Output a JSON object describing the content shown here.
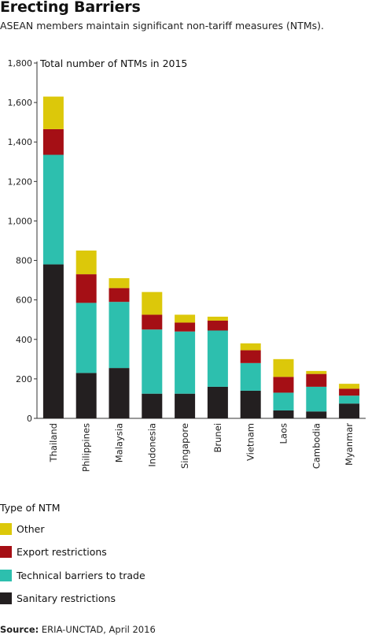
{
  "header": {
    "title": "Erecting Barriers",
    "subtitle": "ASEAN members maintain significant non-tariff measures (NTMs)."
  },
  "chart_data": {
    "type": "bar",
    "stacked": true,
    "title": "Total number of NTMs in 2015",
    "categories": [
      "Thailand",
      "Philippines",
      "Malaysia",
      "Indonesia",
      "Singapore",
      "Brunei",
      "Vietnam",
      "Laos",
      "Cambodia",
      "Myanmar"
    ],
    "ylim": [
      0,
      1800
    ],
    "yticks": [
      0,
      200,
      400,
      600,
      800,
      1000,
      1200,
      1400,
      1600,
      1800
    ],
    "ytick_labels": [
      "0",
      "200",
      "400",
      "600",
      "800",
      "1,000",
      "1,200",
      "1,400",
      "1,600",
      "1,800"
    ],
    "series": [
      {
        "name": "Sanitary restrictions",
        "color": "#231f20",
        "values": [
          780,
          230,
          255,
          125,
          125,
          160,
          140,
          40,
          35,
          75
        ]
      },
      {
        "name": "Technical barriers to trade",
        "color": "#2dbfae",
        "values": [
          555,
          355,
          335,
          325,
          315,
          285,
          140,
          90,
          125,
          40
        ]
      },
      {
        "name": "Export restrictions",
        "color": "#a50f15",
        "values": [
          130,
          145,
          70,
          75,
          45,
          50,
          65,
          80,
          65,
          35
        ]
      },
      {
        "name": "Other",
        "color": "#dcc80a",
        "values": [
          165,
          120,
          50,
          115,
          40,
          20,
          35,
          90,
          15,
          25
        ]
      }
    ]
  },
  "legend": {
    "title": "Type of NTM",
    "items": [
      {
        "label": "Other",
        "color": "#dcc80a"
      },
      {
        "label": "Export restrictions",
        "color": "#a50f15"
      },
      {
        "label": "Technical barriers to trade",
        "color": "#2dbfae"
      },
      {
        "label": "Sanitary restrictions",
        "color": "#231f20"
      }
    ]
  },
  "source": {
    "prefix": "Source:",
    "text": " ERIA-UNCTAD, April 2016"
  }
}
